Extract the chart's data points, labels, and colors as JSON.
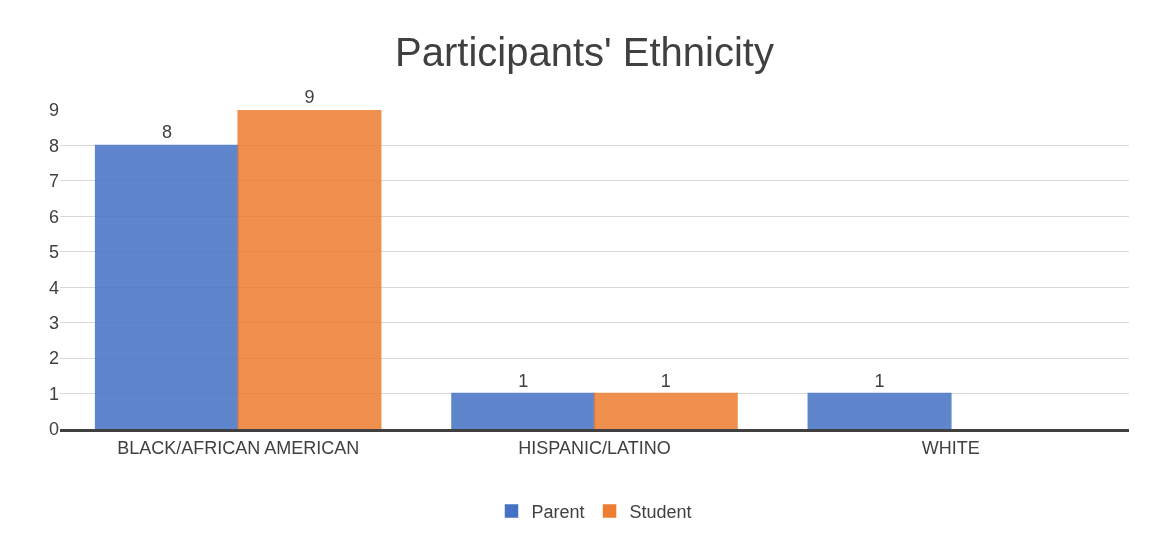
{
  "chart_data": {
    "type": "bar",
    "title": "Participants' Ethnicity",
    "categories": [
      "BLACK/AFRICAN AMERICAN",
      "HISPANIC/LATINO",
      "WHITE"
    ],
    "series": [
      {
        "name": "Parent",
        "color": "#4472c4",
        "values": [
          8,
          1,
          1
        ]
      },
      {
        "name": "Student",
        "color": "#ed7d31",
        "values": [
          9,
          1,
          null
        ]
      }
    ],
    "ylim": [
      0,
      9
    ],
    "yticks": [
      0,
      1,
      2,
      3,
      4,
      5,
      6,
      7,
      8,
      9
    ],
    "grid": "y",
    "legend": "bottom",
    "data_labels": true
  }
}
